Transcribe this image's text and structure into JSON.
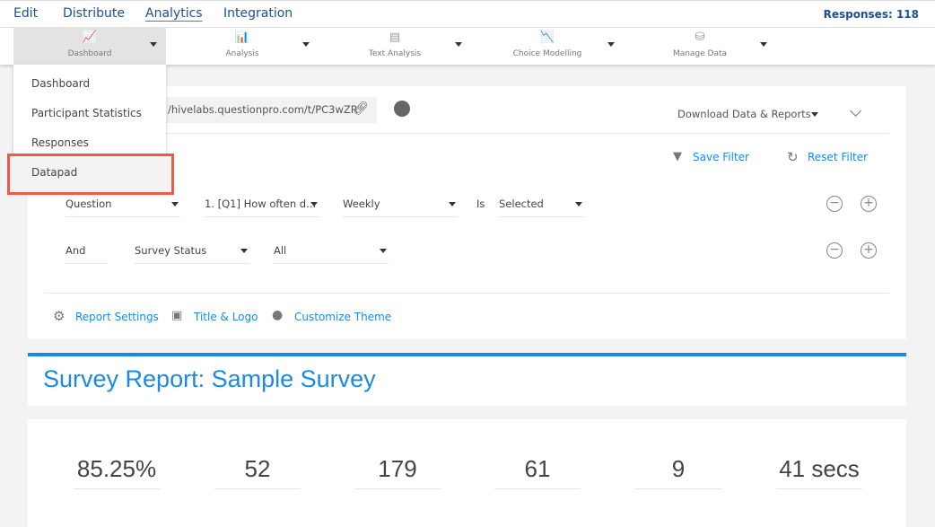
{
  "topnav": {
    "items": [
      "Edit",
      "Distribute",
      "Analytics",
      "Integration"
    ],
    "active": "Analytics",
    "responses": "Responses: 118"
  },
  "toolbar": {
    "tools": [
      {
        "label": "Dashboard",
        "icon": "line-chart-icon"
      },
      {
        "label": "Analysis",
        "icon": "analysis-chart-icon"
      },
      {
        "label": "Text Analysis",
        "icon": "document-icon"
      },
      {
        "label": "Choice Modelling",
        "icon": "choice-chart-icon"
      },
      {
        "label": "Manage Data",
        "icon": "database-icon"
      }
    ]
  },
  "dropdown": {
    "items": [
      "Dashboard",
      "Participant Statistics",
      "Responses",
      "Datapad"
    ],
    "highlighted": "Datapad"
  },
  "panel": {
    "url": "/hivelabs.questionpro.com/t/PC3wZR",
    "download": "Download Data & Reports",
    "save_filter": "Save Filter",
    "reset_filter": "Reset Filter",
    "row1": {
      "field": "Question",
      "question": "1. [Q1] How often d...",
      "answer": "Weekly",
      "op": "Is",
      "state": "Selected"
    },
    "row2": {
      "conj": "And",
      "field": "Survey Status",
      "value": "All"
    },
    "report_settings": "Report Settings",
    "title_logo": "Title & Logo",
    "customize_theme": "Customize Theme"
  },
  "report": {
    "title": "Survey Report: Sample Survey"
  },
  "stats": [
    "85.25%",
    "52",
    "179",
    "61",
    "9",
    "41 secs"
  ],
  "colors": {
    "accent": "#1a8ae5",
    "nav": "#1d4f91",
    "highlight_box": "#f0584a"
  }
}
